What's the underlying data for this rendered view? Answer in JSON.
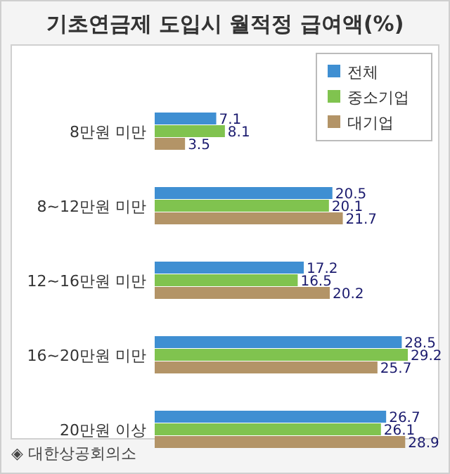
{
  "chart_data": {
    "type": "bar",
    "orientation": "horizontal",
    "title": "기초연금제 도입시 월적정 급여액(%)",
    "categories": [
      "8만원 미만",
      "8~12만원 미만",
      "12~16만원 미만",
      "16~20만원 미만",
      "20만원 이상"
    ],
    "series": [
      {
        "name": "전체",
        "color": "#3f8fd2",
        "values": [
          7.1,
          20.5,
          17.2,
          28.5,
          26.7
        ]
      },
      {
        "name": "중소기업",
        "color": "#80c34f",
        "values": [
          8.1,
          20.1,
          16.5,
          29.2,
          26.1
        ]
      },
      {
        "name": "대기업",
        "color": "#b39467",
        "values": [
          3.5,
          21.7,
          20.2,
          25.7,
          28.9
        ]
      }
    ],
    "data_labels": true,
    "legend": "top right",
    "annotations": [
      "◈ 대한상공회의소"
    ]
  }
}
